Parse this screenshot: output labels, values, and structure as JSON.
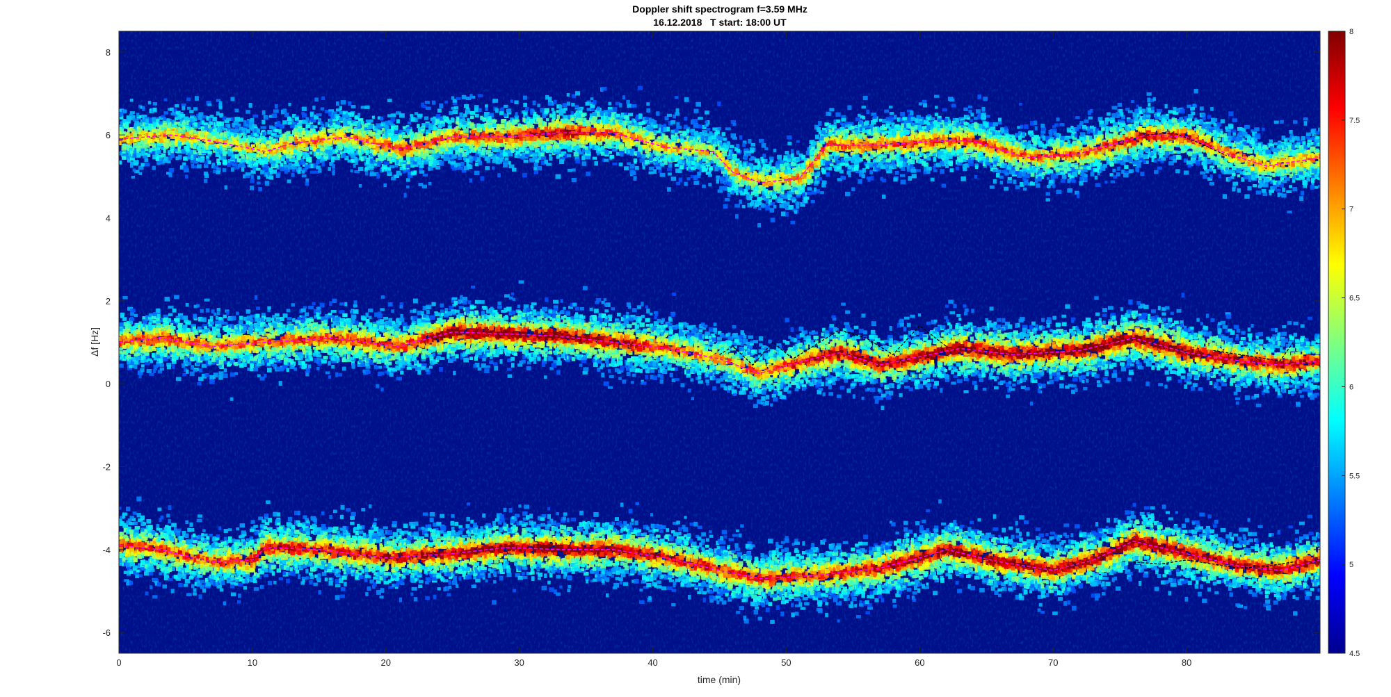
{
  "chart_data": {
    "type": "heatmap",
    "title": "Doppler shift spectrogram f=3.59 MHz",
    "subtitle": "16.12.2018   T start: 18:00 UT",
    "xlabel": "time (min)",
    "ylabel": "Δf [Hz]",
    "xlim": [
      0,
      90
    ],
    "ylim": [
      -6.5,
      8.5
    ],
    "x_ticks": [
      0,
      10,
      20,
      30,
      40,
      50,
      60,
      70,
      80
    ],
    "y_ticks": [
      -6,
      -4,
      -2,
      0,
      2,
      4,
      6,
      8
    ],
    "colorbar": {
      "colormap": "jet",
      "clim": [
        4.5,
        8
      ],
      "ticks": [
        "4.5",
        "5",
        "5.5",
        "6",
        "6.5",
        "7",
        "7.5",
        "8"
      ]
    },
    "background_color": "#00108a",
    "bands": [
      {
        "name": "",
        "line_color": "#ff00ff",
        "x": [
          0,
          4,
          7,
          11,
          13,
          17,
          21,
          25,
          29,
          33,
          37,
          41,
          44.5,
          46,
          48,
          51,
          53,
          57,
          61,
          64,
          68,
          72,
          77,
          80,
          83,
          86,
          90
        ],
        "y": [
          5.9,
          6.0,
          5.85,
          5.6,
          5.8,
          5.95,
          5.65,
          5.95,
          5.95,
          6.05,
          6.05,
          5.7,
          5.6,
          5.1,
          4.85,
          4.95,
          5.75,
          5.75,
          5.85,
          5.85,
          5.45,
          5.55,
          6.0,
          5.95,
          5.55,
          5.25,
          5.45
        ],
        "intensity": [
          0.55,
          0.6,
          0.5,
          0.55,
          0.65,
          0.6,
          0.7,
          0.7,
          0.75,
          0.85,
          0.7,
          0.55,
          0.5,
          0.55,
          0.55,
          0.6,
          0.65,
          0.7,
          0.7,
          0.7,
          0.65,
          0.7,
          0.8,
          0.75,
          0.65,
          0.6,
          0.6
        ]
      },
      {
        "name": "",
        "line_color": "#ff00ff",
        "x": [
          0,
          3,
          7,
          11,
          16,
          21,
          25,
          29,
          33,
          37,
          41,
          45,
          48,
          52,
          54,
          57,
          60,
          63,
          67,
          72,
          76,
          80,
          84,
          87,
          90
        ],
        "y": [
          1.0,
          1.1,
          0.9,
          1.0,
          1.1,
          0.9,
          1.25,
          1.2,
          1.15,
          1.0,
          0.85,
          0.6,
          0.25,
          0.6,
          0.75,
          0.45,
          0.65,
          0.85,
          0.7,
          0.8,
          1.1,
          0.75,
          0.55,
          0.45,
          0.55
        ],
        "intensity": [
          0.7,
          0.75,
          0.65,
          0.7,
          0.75,
          0.75,
          0.95,
          0.95,
          0.9,
          0.85,
          0.7,
          0.6,
          0.65,
          0.8,
          0.9,
          0.85,
          0.9,
          0.95,
          0.9,
          0.95,
          1.0,
          0.9,
          0.8,
          0.85,
          0.8
        ]
      },
      {
        "name": "",
        "line_color": "#ff00ff",
        "x": [
          0,
          3,
          7,
          10,
          11,
          15,
          20,
          25,
          29,
          33,
          37,
          41,
          45,
          48,
          51,
          53,
          57,
          60,
          62,
          66,
          70,
          73,
          76,
          80,
          84,
          87,
          90
        ],
        "y": [
          -3.9,
          -4.0,
          -4.3,
          -4.25,
          -3.95,
          -4.0,
          -4.2,
          -4.1,
          -3.95,
          -4.0,
          -4.0,
          -4.2,
          -4.5,
          -4.7,
          -4.65,
          -4.6,
          -4.45,
          -4.2,
          -4.0,
          -4.3,
          -4.5,
          -4.25,
          -3.8,
          -4.1,
          -4.4,
          -4.5,
          -4.25
        ],
        "intensity": [
          0.75,
          0.75,
          0.7,
          0.8,
          0.85,
          0.8,
          0.85,
          0.85,
          0.9,
          0.95,
          0.9,
          0.8,
          0.75,
          0.8,
          0.75,
          0.75,
          0.85,
          0.9,
          0.9,
          0.9,
          0.9,
          0.9,
          0.95,
          0.9,
          0.85,
          0.85,
          0.9
        ]
      }
    ],
    "overlay_lines": [
      {
        "color": "#000000",
        "x": [
          45,
          46,
          47.5,
          49,
          50.5,
          52,
          54,
          56,
          58,
          60,
          62
        ],
        "y": [
          0.7,
          0.9,
          0.45,
          1.0,
          0.6,
          0.9,
          1.3,
          1.1,
          0.7,
          1.4,
          0.9
        ]
      },
      {
        "color": "#000000",
        "x": [
          82,
          84,
          86,
          87,
          88
        ],
        "y": [
          0.8,
          0.7,
          0.6,
          0.55,
          1.0
        ]
      },
      {
        "color": "#000000",
        "x": [
          76,
          78,
          80,
          82,
          84,
          86,
          88
        ],
        "y": [
          -4.3,
          -4.35,
          -4.25,
          -4.35,
          -4.45,
          -4.4,
          -4.3
        ]
      },
      {
        "color": "#000000",
        "x": [
          77,
          79,
          81,
          83
        ],
        "y": [
          6.0,
          6.05,
          5.8,
          5.5
        ]
      }
    ]
  }
}
